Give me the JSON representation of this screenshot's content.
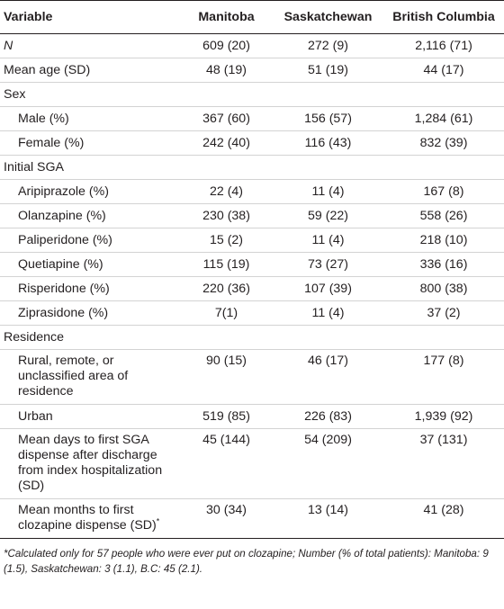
{
  "table": {
    "headers": {
      "variable": "Variable",
      "manitoba": "Manitoba",
      "saskatchewan": "Saskatchewan",
      "bc": "British Columbia"
    },
    "rows": [
      {
        "label": "N",
        "mb": "609 (20)",
        "sk": "272 (9)",
        "bc": "2,116 (71)"
      },
      {
        "label": "Mean age (SD)",
        "mb": "48 (19)",
        "sk": "51 (19)",
        "bc": "44 (17)"
      },
      {
        "label": "Sex",
        "mb": "",
        "sk": "",
        "bc": ""
      },
      {
        "label": "Male (%)",
        "mb": "367 (60)",
        "sk": "156 (57)",
        "bc": "1,284 (61)"
      },
      {
        "label": "Female (%)",
        "mb": "242 (40)",
        "sk": "116 (43)",
        "bc": "832 (39)"
      },
      {
        "label": "Initial SGA",
        "mb": "",
        "sk": "",
        "bc": ""
      },
      {
        "label": "Aripiprazole (%)",
        "mb": "22 (4)",
        "sk": "11 (4)",
        "bc": "167 (8)"
      },
      {
        "label": "Olanzapine (%)",
        "mb": "230 (38)",
        "sk": "59 (22)",
        "bc": "558 (26)"
      },
      {
        "label": "Paliperidone (%)",
        "mb": "15 (2)",
        "sk": "11 (4)",
        "bc": "218 (10)"
      },
      {
        "label": "Quetiapine (%)",
        "mb": "115 (19)",
        "sk": "73 (27)",
        "bc": "336 (16)"
      },
      {
        "label": "Risperidone (%)",
        "mb": "220 (36)",
        "sk": "107 (39)",
        "bc": "800 (38)"
      },
      {
        "label": "Ziprasidone (%)",
        "mb": "7(1)",
        "sk": "11 (4)",
        "bc": "37 (2)"
      },
      {
        "label": "Residence",
        "mb": "",
        "sk": "",
        "bc": ""
      },
      {
        "label": "Rural, remote, or unclassified area of residence",
        "mb": "90 (15)",
        "sk": "46 (17)",
        "bc": "177 (8)"
      },
      {
        "label": "Urban",
        "mb": "519 (85)",
        "sk": "226 (83)",
        "bc": "1,939 (92)"
      },
      {
        "label": "Mean days to first SGA dispense after discharge from index hospitalization (SD)",
        "mb": "45 (144)",
        "sk": "54 (209)",
        "bc": "37 (131)"
      },
      {
        "label": "Mean months to first clozapine dispense (SD)",
        "sup": "*",
        "mb": "30 (34)",
        "sk": "13 (14)",
        "bc": "41 (28)"
      }
    ]
  },
  "footnote": "*Calculated only for 57 people who were ever put on clozapine; Number (% of total patients): Manitoba: 9 (1.5), Saskatchewan: 3 (1.1), B.C: 45 (2.1)."
}
